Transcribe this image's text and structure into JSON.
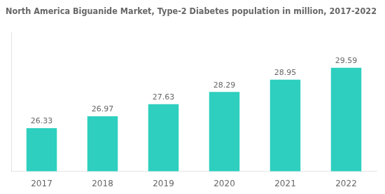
{
  "chart_data": {
    "type": "bar",
    "title": "North America Biguanide Market, Type-2 Diabetes population in million, 2017-2022",
    "categories": [
      "2017",
      "2018",
      "2019",
      "2020",
      "2021",
      "2022"
    ],
    "values": [
      26.33,
      26.97,
      27.63,
      28.29,
      28.95,
      29.59
    ],
    "color": "#2ECFBF",
    "ylim": [
      24.0,
      31.5
    ],
    "grid": false,
    "data_labels": true,
    "tick_labels": "x"
  }
}
